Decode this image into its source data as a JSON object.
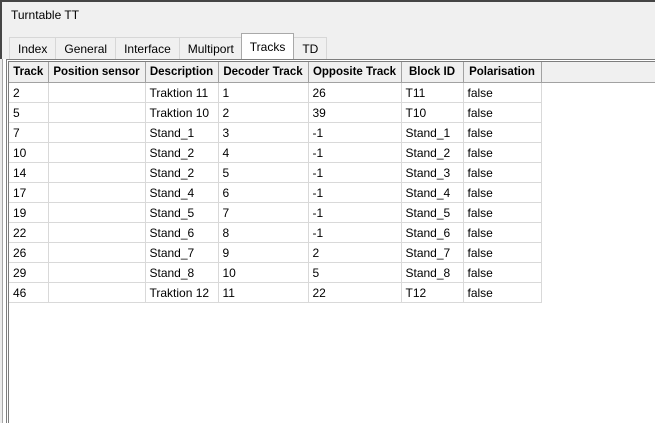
{
  "window": {
    "title": "Turntable TT"
  },
  "tabs": [
    {
      "label": "Index",
      "active": false
    },
    {
      "label": "General",
      "active": false
    },
    {
      "label": "Interface",
      "active": false
    },
    {
      "label": "Multiport",
      "active": false
    },
    {
      "label": "Tracks",
      "active": true
    },
    {
      "label": "TD",
      "active": false
    }
  ],
  "table": {
    "columns": [
      "Track",
      "Position sensor",
      "Description",
      "Decoder Track",
      "Opposite Track",
      "Block ID",
      "Polarisation"
    ],
    "rows": [
      [
        "2",
        "",
        "Traktion 11",
        "1",
        "26",
        "T11",
        "false"
      ],
      [
        "5",
        "",
        "Traktion 10",
        "2",
        "39",
        "T10",
        "false"
      ],
      [
        "7",
        "",
        "Stand_1",
        "3",
        "-1",
        "Stand_1",
        "false"
      ],
      [
        "10",
        "",
        "Stand_2",
        "4",
        "-1",
        "Stand_2",
        "false"
      ],
      [
        "14",
        "",
        "Stand_2",
        "5",
        "-1",
        "Stand_3",
        "false"
      ],
      [
        "17",
        "",
        "Stand_4",
        "6",
        "-1",
        "Stand_4",
        "false"
      ],
      [
        "19",
        "",
        "Stand_5",
        "7",
        "-1",
        "Stand_5",
        "false"
      ],
      [
        "22",
        "",
        "Stand_6",
        "8",
        "-1",
        "Stand_6",
        "false"
      ],
      [
        "26",
        "",
        "Stand_7",
        "9",
        "2",
        "Stand_7",
        "false"
      ],
      [
        "29",
        "",
        "Stand_8",
        "10",
        "5",
        "Stand_8",
        "false"
      ],
      [
        "46",
        "",
        "Traktion 12",
        "11",
        "22",
        "T12",
        "false"
      ]
    ]
  },
  "colors": {
    "panel_background": "#f0f0f0",
    "content_background": "#ffffff",
    "window_border": "#454545",
    "table_border": "#7d7d7d",
    "header_separator": "#a2a2a2",
    "gridline": "#d9d9d9",
    "text": "#000000"
  }
}
